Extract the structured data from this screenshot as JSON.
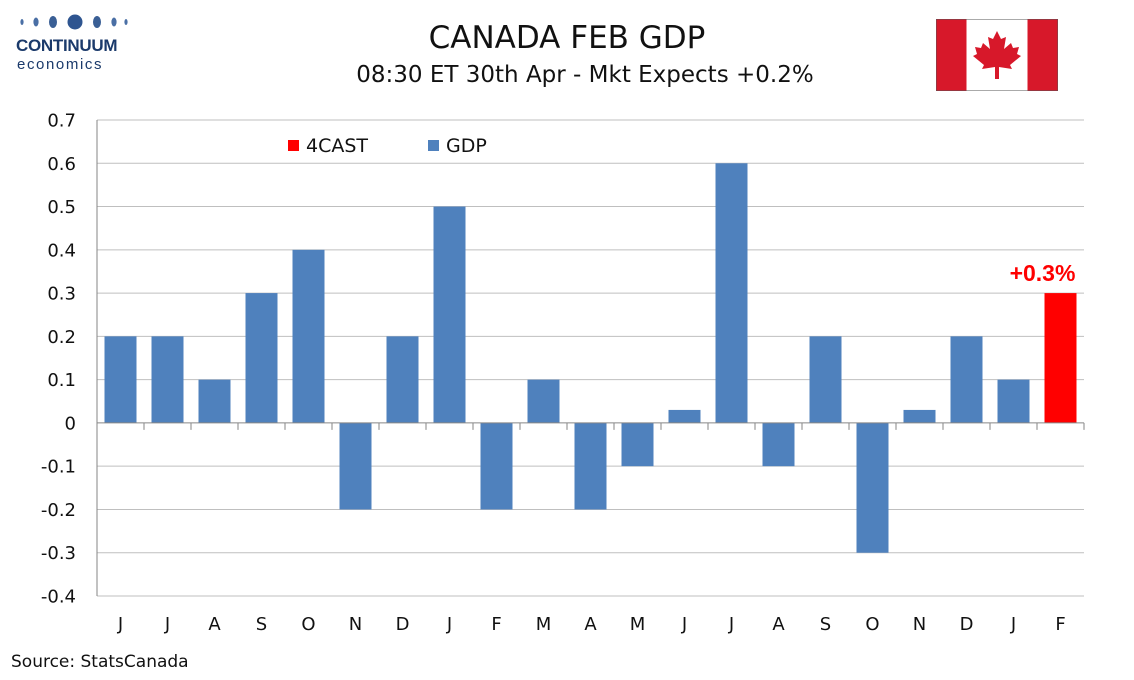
{
  "logo": {
    "name": "CONTINUUM",
    "sub": "economics"
  },
  "header": {
    "title": "CANADA FEB GDP",
    "subtitle": "08:30 ET 30th Apr - Mkt Expects +0.2%"
  },
  "flag": {
    "icon": "canada-flag-icon",
    "red": "#d7182a",
    "white": "#ffffff"
  },
  "source": "Source: StatsCanada",
  "chart_data": {
    "type": "bar",
    "categories": [
      "J",
      "J",
      "A",
      "S",
      "O",
      "N",
      "D",
      "J",
      "F",
      "M",
      "A",
      "M",
      "J",
      "J",
      "A",
      "S",
      "O",
      "N",
      "D",
      "J",
      "F"
    ],
    "series": [
      {
        "name": "GDP",
        "color": "#4f81bd",
        "values": [
          0.2,
          0.2,
          0.1,
          0.3,
          0.4,
          -0.2,
          0.2,
          0.5,
          -0.2,
          0.1,
          -0.2,
          -0.1,
          0.03,
          0.6,
          -0.1,
          0.2,
          -0.3,
          0.03,
          0.2,
          0.1,
          null
        ]
      },
      {
        "name": "4CAST",
        "color": "#ff0000",
        "values": [
          null,
          null,
          null,
          null,
          null,
          null,
          null,
          null,
          null,
          null,
          null,
          null,
          null,
          null,
          null,
          null,
          null,
          null,
          null,
          null,
          0.3
        ]
      }
    ],
    "ylim": [
      -0.4,
      0.7
    ],
    "yticks": [
      "0.7",
      "0.6",
      "0.5",
      "0.4",
      "0.3",
      "0.2",
      "0.1",
      "0",
      "-0.1",
      "-0.2",
      "-0.3",
      "-0.4"
    ],
    "ytick_values": [
      0.7,
      0.6,
      0.5,
      0.4,
      0.3,
      0.2,
      0.1,
      0,
      -0.1,
      -0.2,
      -0.3,
      -0.4
    ],
    "grid": true,
    "legend": {
      "placement": "top-left",
      "items": [
        {
          "label": "4CAST",
          "color": "#ff0000"
        },
        {
          "label": "GDP",
          "color": "#4f81bd"
        }
      ]
    },
    "annotations": [
      {
        "text": "+0.3%",
        "category_index": 20,
        "value": 0.3,
        "color": "#ff0000"
      }
    ],
    "xlabel": "",
    "ylabel": ""
  }
}
